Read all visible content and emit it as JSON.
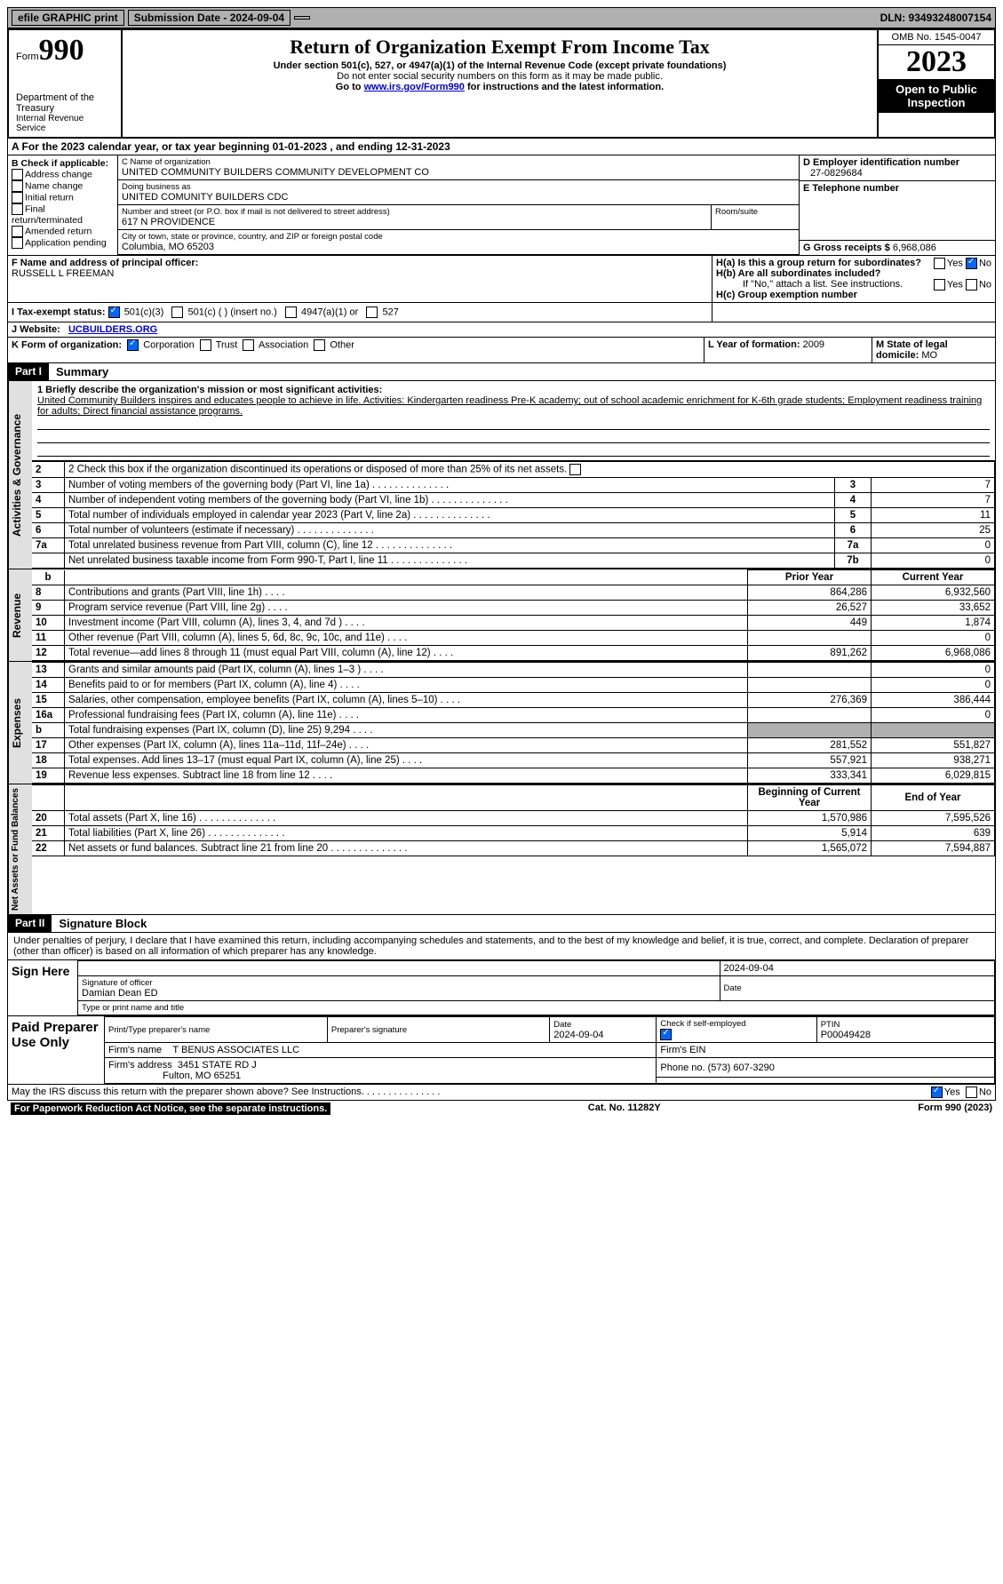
{
  "colors": {
    "topbar_bg": "#b0b0b0",
    "black": "#000000",
    "white": "#ffffff",
    "link": "#0000cc",
    "check_blue": "#0066ff",
    "grey_cell": "#b0b0b0",
    "vert_bg": "#e0e0e0"
  },
  "topbar": {
    "efile": "efile GRAPHIC print",
    "submission": "Submission Date - 2024-09-04",
    "dln": "DLN: 93493248007154"
  },
  "header": {
    "form_word": "Form",
    "form_no": "990",
    "dept": "Department of the Treasury",
    "irs": "Internal Revenue Service",
    "title": "Return of Organization Exempt From Income Tax",
    "sub1": "Under section 501(c), 527, or 4947(a)(1) of the Internal Revenue Code (except private foundations)",
    "sub2": "Do not enter social security numbers on this form as it may be made public.",
    "sub3_pre": "Go to ",
    "sub3_link": "www.irs.gov/Form990",
    "sub3_post": " for instructions and the latest information.",
    "omb": "OMB No. 1545-0047",
    "year": "2023",
    "inspect": "Open to Public Inspection"
  },
  "rowA": "A  For the 2023 calendar year, or tax year beginning 01-01-2023    , and ending 12-31-2023",
  "boxB": {
    "title": "B Check if applicable:",
    "items": [
      "Address change",
      "Name change",
      "Initial return",
      "Final return/terminated",
      "Amended return",
      "Application pending"
    ]
  },
  "boxC": {
    "name_lbl": "C Name of organization",
    "name": "UNITED COMMUNITY BUILDERS COMMUNITY DEVELOPMENT CO",
    "dba_lbl": "Doing business as",
    "dba": "UNITED COMUNITY BUILDERS CDC",
    "addr_lbl": "Number and street (or P.O. box if mail is not delivered to street address)",
    "addr": "617 N PROVIDENCE",
    "room_lbl": "Room/suite",
    "city_lbl": "City or town, state or province, country, and ZIP or foreign postal code",
    "city": "Columbia, MO   65203"
  },
  "boxD": {
    "lbl": "D Employer identification number",
    "val": "27-0829684"
  },
  "boxE": {
    "lbl": "E Telephone number",
    "val": ""
  },
  "boxG": {
    "lbl": "G Gross receipts $",
    "val": "6,968,086"
  },
  "boxF": {
    "lbl": "F  Name and address of principal officer:",
    "name": "RUSSELL L FREEMAN"
  },
  "boxH": {
    "a": "H(a)  Is this a group return for subordinates?",
    "b": "H(b)  Are all subordinates included?",
    "note": "If \"No,\" attach a list. See instructions.",
    "c": "H(c)  Group exemption number",
    "yes": "Yes",
    "no": "No"
  },
  "boxI": {
    "lbl": "I   Tax-exempt status:",
    "c3": "501(c)(3)",
    "cn": "501(c) (  ) (insert no.)",
    "a4947": "4947(a)(1) or",
    "s527": "527"
  },
  "boxJ": {
    "lbl": "J   Website:",
    "val": "UCBUILDERS.ORG"
  },
  "boxK": {
    "lbl": "K Form of organization:",
    "opts": [
      "Corporation",
      "Trust",
      "Association",
      "Other"
    ]
  },
  "boxL": {
    "lbl": "L Year of formation:",
    "val": "2009"
  },
  "boxM": {
    "lbl": "M State of legal domicile:",
    "val": "MO"
  },
  "parts": {
    "p1": "Part I",
    "p1_title": "Summary",
    "p2": "Part II",
    "p2_title": "Signature Block"
  },
  "sections": {
    "act": "Activities & Governance",
    "rev": "Revenue",
    "exp": "Expenses",
    "net": "Net Assets or Fund Balances"
  },
  "summary": {
    "l1_lbl": "1   Briefly describe the organization's mission or most significant activities:",
    "l1_text": "United Community Builders inspires and educates people to achieve in life. Activities: Kindergarten readiness Pre-K academy; out of school academic enrichment for K-6th grade students; Employment readiness training for adults; Direct financial assistance programs.",
    "l2": "2   Check this box        if the organization discontinued its operations or disposed of more than 25% of its net assets.",
    "l3": "Number of voting members of the governing body (Part VI, line 1a)",
    "l4": "Number of independent voting members of the governing body (Part VI, line 1b)",
    "l5": "Total number of individuals employed in calendar year 2023 (Part V, line 2a)",
    "l6": "Total number of volunteers (estimate if necessary)",
    "l7a": "Total unrelated business revenue from Part VIII, column (C), line 12",
    "l7b": "Net unrelated business taxable income from Form 990-T, Part I, line 11",
    "v3": "7",
    "v4": "7",
    "v5": "11",
    "v6": "25",
    "v7a": "0",
    "v7b": "0",
    "col_py": "Prior Year",
    "col_cy": "Current Year",
    "rows_rev": [
      {
        "n": "8",
        "d": "Contributions and grants (Part VIII, line 1h)",
        "py": "864,286",
        "cy": "6,932,560"
      },
      {
        "n": "9",
        "d": "Program service revenue (Part VIII, line 2g)",
        "py": "26,527",
        "cy": "33,652"
      },
      {
        "n": "10",
        "d": "Investment income (Part VIII, column (A), lines 3, 4, and 7d )",
        "py": "449",
        "cy": "1,874"
      },
      {
        "n": "11",
        "d": "Other revenue (Part VIII, column (A), lines 5, 6d, 8c, 9c, 10c, and 11e)",
        "py": "",
        "cy": "0"
      },
      {
        "n": "12",
        "d": "Total revenue—add lines 8 through 11 (must equal Part VIII, column (A), line 12)",
        "py": "891,262",
        "cy": "6,968,086"
      }
    ],
    "rows_exp": [
      {
        "n": "13",
        "d": "Grants and similar amounts paid (Part IX, column (A), lines 1–3 )",
        "py": "",
        "cy": "0"
      },
      {
        "n": "14",
        "d": "Benefits paid to or for members (Part IX, column (A), line 4)",
        "py": "",
        "cy": "0"
      },
      {
        "n": "15",
        "d": "Salaries, other compensation, employee benefits (Part IX, column (A), lines 5–10)",
        "py": "276,369",
        "cy": "386,444"
      },
      {
        "n": "16a",
        "d": "Professional fundraising fees (Part IX, column (A), line 11e)",
        "py": "",
        "cy": "0"
      },
      {
        "n": "b",
        "d": "Total fundraising expenses (Part IX, column (D), line 25) 9,294",
        "py": "GREY",
        "cy": "GREY"
      },
      {
        "n": "17",
        "d": "Other expenses (Part IX, column (A), lines 11a–11d, 11f–24e)",
        "py": "281,552",
        "cy": "551,827"
      },
      {
        "n": "18",
        "d": "Total expenses. Add lines 13–17 (must equal Part IX, column (A), line 25)",
        "py": "557,921",
        "cy": "938,271"
      },
      {
        "n": "19",
        "d": "Revenue less expenses. Subtract line 18 from line 12",
        "py": "333,341",
        "cy": "6,029,815"
      }
    ],
    "col_bcy": "Beginning of Current Year",
    "col_ey": "End of Year",
    "rows_net": [
      {
        "n": "20",
        "d": "Total assets (Part X, line 16)",
        "py": "1,570,986",
        "cy": "7,595,526"
      },
      {
        "n": "21",
        "d": "Total liabilities (Part X, line 26)",
        "py": "5,914",
        "cy": "639"
      },
      {
        "n": "22",
        "d": "Net assets or fund balances. Subtract line 21 from line 20",
        "py": "1,565,072",
        "cy": "7,594,887"
      }
    ]
  },
  "sig": {
    "declaration": "Under penalties of perjury, I declare that I have examined this return, including accompanying schedules and statements, and to the best of my knowledge and belief, it is true, correct, and complete. Declaration of preparer (other than officer) is based on all information of which preparer has any knowledge.",
    "sign_here": "Sign Here",
    "sig_officer": "Signature of officer",
    "date_lbl": "Date",
    "sig_date": "2024-09-04",
    "officer_name": "Damian Dean ED",
    "name_title_lbl": "Type or print name and title",
    "paid": "Paid Preparer Use Only",
    "col_print": "Print/Type preparer's name",
    "col_sig": "Preparer's signature",
    "col_date": "Date",
    "prep_date": "2024-09-04",
    "col_check": "Check          if self-employed",
    "col_ptin": "PTIN",
    "ptin": "P00049428",
    "firm_name_lbl": "Firm's name",
    "firm_name": "T BENUS ASSOCIATES LLC",
    "firm_ein_lbl": "Firm's EIN",
    "firm_addr_lbl": "Firm's address",
    "firm_addr1": "3451 STATE RD J",
    "firm_addr2": "Fulton, MO   65251",
    "phone_lbl": "Phone no.",
    "phone": "(573) 607-3290",
    "discuss": "May the IRS discuss this return with the preparer shown above? See Instructions.",
    "paperwork": "For Paperwork Reduction Act Notice, see the separate instructions.",
    "cat": "Cat. No. 11282Y",
    "form": "Form 990 (2023)"
  }
}
